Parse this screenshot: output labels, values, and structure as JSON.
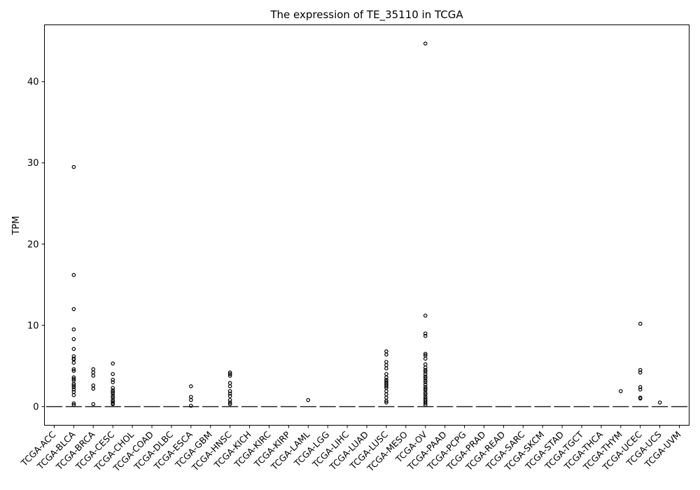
{
  "chart_data": {
    "type": "box",
    "title": "The expression of TE_35110 in TCGA",
    "xlabel": "",
    "ylabel": "TPM",
    "ylim": [
      -2.3,
      47
    ],
    "yticks": [
      0,
      10,
      20,
      30,
      40
    ],
    "grid": false,
    "legend": "none",
    "colors": {
      "box": "#3a3a3a",
      "outlier": "#000000",
      "axis": "#000000"
    },
    "categories": [
      "TCGA-ACC",
      "TCGA-BLCA",
      "TCGA-BRCA",
      "TCGA-CESC",
      "TCGA-CHOL",
      "TCGA-COAD",
      "TCGA-DLBC",
      "TCGA-ESCA",
      "TCGA-GBM",
      "TCGA-HNSC",
      "TCGA-KICH",
      "TCGA-KIRC",
      "TCGA-KIRP",
      "TCGA-LAML",
      "TCGA-LGG",
      "TCGA-LIHC",
      "TCGA-LUAD",
      "TCGA-LUSC",
      "TCGA-MESO",
      "TCGA-OV",
      "TCGA-PAAD",
      "TCGA-PCPG",
      "TCGA-PRAD",
      "TCGA-READ",
      "TCGA-SARC",
      "TCGA-SKCM",
      "TCGA-STAD",
      "TCGA-TGCT",
      "TCGA-THCA",
      "TCGA-THYM",
      "TCGA-UCEC",
      "TCGA-UCS",
      "TCGA-UVM"
    ],
    "boxes": [
      {
        "median": 0,
        "q1": 0,
        "q3": 0,
        "whisker_low": 0,
        "whisker_high": 0,
        "outliers": []
      },
      {
        "median": 0,
        "q1": 0,
        "q3": 0,
        "whisker_low": 0,
        "whisker_high": 0,
        "outliers": [
          29.5,
          16.2,
          12.0,
          9.5,
          8.3,
          7.1,
          6.2,
          5.9,
          5.8,
          5.4,
          4.6,
          4.4,
          3.6,
          3.4,
          3.2,
          2.8,
          2.6,
          2.4,
          2.1,
          1.8,
          1.4,
          0.4,
          0.2
        ]
      },
      {
        "median": 0,
        "q1": 0,
        "q3": 0,
        "whisker_low": 0,
        "whisker_high": 0,
        "outliers": [
          4.6,
          4.2,
          3.8,
          2.6,
          2.2,
          0.3
        ]
      },
      {
        "median": 0,
        "q1": 0,
        "q3": 0,
        "whisker_low": 0,
        "whisker_high": 0,
        "outliers": [
          5.3,
          4.0,
          3.3,
          3.0,
          2.3,
          2.0,
          1.8,
          1.6,
          1.3,
          1.1,
          0.8,
          0.6,
          0.4,
          0.3
        ]
      },
      {
        "median": 0,
        "q1": 0,
        "q3": 0,
        "whisker_low": 0,
        "whisker_high": 0,
        "outliers": []
      },
      {
        "median": 0,
        "q1": 0,
        "q3": 0,
        "whisker_low": 0,
        "whisker_high": 0,
        "outliers": []
      },
      {
        "median": 0,
        "q1": 0,
        "q3": 0,
        "whisker_low": 0,
        "whisker_high": 0,
        "outliers": []
      },
      {
        "median": 0,
        "q1": 0,
        "q3": 0,
        "whisker_low": 0,
        "whisker_high": 0,
        "outliers": [
          2.5,
          1.2,
          0.8,
          0.1
        ]
      },
      {
        "median": 0,
        "q1": 0,
        "q3": 0,
        "whisker_low": 0,
        "whisker_high": 0,
        "outliers": []
      },
      {
        "median": 0,
        "q1": 0,
        "q3": 0,
        "whisker_low": 0,
        "whisker_high": 0,
        "outliers": [
          4.2,
          4.0,
          3.8,
          2.9,
          2.5,
          1.9,
          1.6,
          1.3,
          0.8,
          0.5,
          0.3
        ]
      },
      {
        "median": 0,
        "q1": 0,
        "q3": 0,
        "whisker_low": 0,
        "whisker_high": 0,
        "outliers": []
      },
      {
        "median": 0,
        "q1": 0,
        "q3": 0,
        "whisker_low": 0,
        "whisker_high": 0,
        "outliers": []
      },
      {
        "median": 0,
        "q1": 0,
        "q3": 0,
        "whisker_low": 0,
        "whisker_high": 0,
        "outliers": []
      },
      {
        "median": 0,
        "q1": 0,
        "q3": 0,
        "whisker_low": 0,
        "whisker_high": 0,
        "outliers": [
          0.8
        ]
      },
      {
        "median": 0,
        "q1": 0,
        "q3": 0,
        "whisker_low": 0,
        "whisker_high": 0,
        "outliers": []
      },
      {
        "median": 0,
        "q1": 0,
        "q3": 0,
        "whisker_low": 0,
        "whisker_high": 0,
        "outliers": []
      },
      {
        "median": 0,
        "q1": 0,
        "q3": 0,
        "whisker_low": 0,
        "whisker_high": 0,
        "outliers": []
      },
      {
        "median": 0,
        "q1": 0,
        "q3": 0,
        "whisker_low": 0,
        "whisker_high": 0,
        "outliers": [
          6.8,
          6.4,
          5.5,
          5.1,
          4.7,
          4.0,
          3.6,
          3.3,
          3.1,
          2.9,
          2.7,
          2.5,
          2.3,
          1.9,
          1.5,
          1.1,
          0.7,
          0.5
        ]
      },
      {
        "median": 0,
        "q1": 0,
        "q3": 0,
        "whisker_low": 0,
        "whisker_high": 0,
        "outliers": []
      },
      {
        "median": 0,
        "q1": 0,
        "q3": 0,
        "whisker_low": 0,
        "whisker_high": 0,
        "outliers": [
          44.7,
          11.2,
          9.0,
          8.7,
          6.5,
          6.3,
          5.9,
          5.2,
          4.8,
          4.5,
          4.3,
          4.0,
          3.7,
          3.5,
          3.2,
          3.0,
          2.7,
          2.4,
          2.2,
          2.0,
          1.7,
          1.5,
          1.2,
          1.0,
          0.8,
          0.6,
          0.4,
          0.2
        ]
      },
      {
        "median": 0,
        "q1": 0,
        "q3": 0,
        "whisker_low": 0,
        "whisker_high": 0,
        "outliers": []
      },
      {
        "median": 0,
        "q1": 0,
        "q3": 0,
        "whisker_low": 0,
        "whisker_high": 0,
        "outliers": []
      },
      {
        "median": 0,
        "q1": 0,
        "q3": 0,
        "whisker_low": 0,
        "whisker_high": 0,
        "outliers": []
      },
      {
        "median": 0,
        "q1": 0,
        "q3": 0,
        "whisker_low": 0,
        "whisker_high": 0,
        "outliers": []
      },
      {
        "median": 0,
        "q1": 0,
        "q3": 0,
        "whisker_low": 0,
        "whisker_high": 0,
        "outliers": []
      },
      {
        "median": 0,
        "q1": 0,
        "q3": 0,
        "whisker_low": 0,
        "whisker_high": 0,
        "outliers": []
      },
      {
        "median": 0,
        "q1": 0,
        "q3": 0,
        "whisker_low": 0,
        "whisker_high": 0,
        "outliers": []
      },
      {
        "median": 0,
        "q1": 0,
        "q3": 0,
        "whisker_low": 0,
        "whisker_high": 0,
        "outliers": []
      },
      {
        "median": 0,
        "q1": 0,
        "q3": 0,
        "whisker_low": 0,
        "whisker_high": 0,
        "outliers": []
      },
      {
        "median": 0,
        "q1": 0,
        "q3": 0,
        "whisker_low": 0,
        "whisker_high": 0,
        "outliers": [
          1.9
        ]
      },
      {
        "median": 0,
        "q1": 0,
        "q3": 0,
        "whisker_low": 0,
        "whisker_high": 0,
        "outliers": [
          10.2,
          4.5,
          4.2,
          2.4,
          2.1,
          1.1,
          1.0
        ]
      },
      {
        "median": 0,
        "q1": 0,
        "q3": 0,
        "whisker_low": 0,
        "whisker_high": 0,
        "outliers": [
          0.5
        ]
      },
      {
        "median": 0,
        "q1": 0,
        "q3": 0,
        "whisker_low": 0,
        "whisker_high": 0,
        "outliers": []
      }
    ]
  }
}
